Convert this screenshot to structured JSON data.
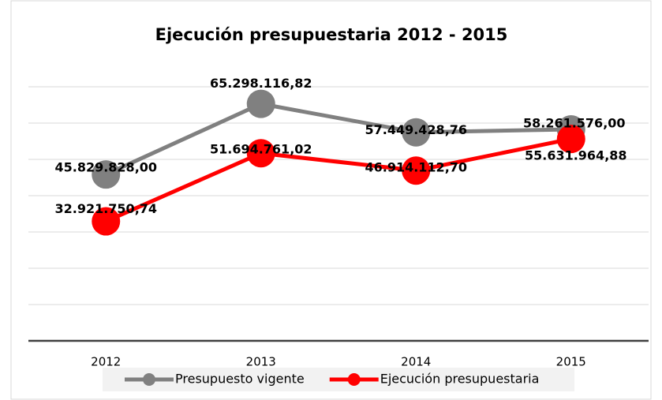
{
  "chart_data": {
    "type": "line",
    "title": "Ejecución presupuestaria 2012 - 2015",
    "categories": [
      "2012",
      "2013",
      "2014",
      "2015"
    ],
    "series": [
      {
        "name": "Presupuesto vigente",
        "color": "#808080",
        "values": [
          45829828.0,
          65298116.82,
          57449428.76,
          58261576.0
        ],
        "value_labels": [
          "45.829.828,00",
          "65.298.116,82",
          "57.449.428,76",
          "58.261.576,00"
        ]
      },
      {
        "name": "Ejecución presupuestaria",
        "color": "#ff0000",
        "values": [
          32921750.74,
          51694761.02,
          46914112.7,
          55631964.88
        ],
        "value_labels": [
          "32.921.750,74",
          "51.694.761,02",
          "46.914.112,70",
          "55.631.964,88"
        ]
      }
    ],
    "ylim": [
      0,
      80000000
    ],
    "yticks": [
      0,
      10000000,
      20000000,
      30000000,
      40000000,
      50000000,
      60000000,
      70000000,
      80000000
    ],
    "grid": true,
    "legend": "bottom"
  }
}
